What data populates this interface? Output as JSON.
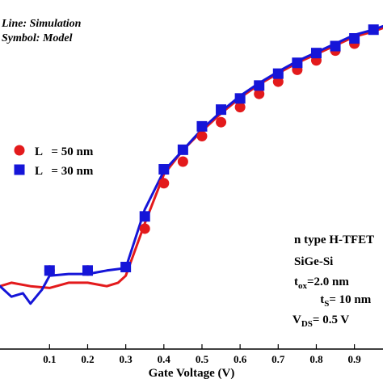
{
  "chart_data": {
    "type": "line",
    "title": "",
    "xlabel": "Gate Voltage (V)",
    "ylabel": "",
    "xlim": [
      -0.03,
      0.975
    ],
    "ylim": [
      0,
      1
    ],
    "x_ticks": [
      0.1,
      0.2,
      0.3,
      0.4,
      0.5,
      0.6,
      0.7,
      0.8,
      0.9
    ],
    "x_tick_labels": [
      "0.1",
      "0.2",
      "0.3",
      "0.4",
      "0.5",
      "0.6",
      "0.7",
      "0.8",
      "0.9"
    ],
    "grid": false,
    "notes": {
      "line_label": "Line: Simulation",
      "symbol_label": "Symbol: Model"
    },
    "legend": {
      "position": "center-left",
      "entries": [
        {
          "marker": "circle",
          "text": "L   = 50 nm",
          "color": "#e31a1c"
        },
        {
          "marker": "square",
          "text": "L   = 30 nm",
          "color": "#1515d8"
        }
      ]
    },
    "annotation": {
      "line1": "n type H-TFET",
      "line2": "SiGe-Si",
      "tox_base": "t",
      "tox_sub": "ox",
      "tox_value": "=2.0 nm",
      "ts_base": "t",
      "ts_sub": "S",
      "ts_value": "= 10 nm",
      "vds_base": "V",
      "vds_sub": "DS",
      "vds_value": "= 0.5 V"
    },
    "series": [
      {
        "name": "L = 50 nm",
        "kind": "simulation-line",
        "color": "#e31a1c",
        "x": [
          -0.03,
          0.0,
          0.05,
          0.1,
          0.15,
          0.2,
          0.25,
          0.28,
          0.3,
          0.32,
          0.35,
          0.4,
          0.45,
          0.5,
          0.55,
          0.6,
          0.65,
          0.7,
          0.75,
          0.8,
          0.85,
          0.9,
          0.95,
          0.975
        ],
        "y": [
          0.18,
          0.19,
          0.18,
          0.175,
          0.19,
          0.19,
          0.18,
          0.19,
          0.21,
          0.27,
          0.36,
          0.5,
          0.57,
          0.625,
          0.675,
          0.72,
          0.758,
          0.79,
          0.82,
          0.845,
          0.87,
          0.895,
          0.91,
          0.92
        ]
      },
      {
        "name": "L = 30 nm",
        "kind": "simulation-line",
        "color": "#1515d8",
        "x": [
          -0.03,
          0.0,
          0.03,
          0.05,
          0.08,
          0.1,
          0.15,
          0.2,
          0.25,
          0.3,
          0.35,
          0.4,
          0.45,
          0.5,
          0.55,
          0.6,
          0.65,
          0.7,
          0.75,
          0.8,
          0.85,
          0.9,
          0.95,
          0.975
        ],
        "y": [
          0.18,
          0.15,
          0.16,
          0.13,
          0.17,
          0.21,
          0.215,
          0.215,
          0.225,
          0.232,
          0.4,
          0.51,
          0.57,
          0.63,
          0.68,
          0.725,
          0.762,
          0.795,
          0.825,
          0.85,
          0.875,
          0.9,
          0.915,
          0.925
        ]
      },
      {
        "name": "L = 50 nm",
        "kind": "model-markers",
        "marker": "circle",
        "color": "#e31a1c",
        "x": [
          0.1,
          0.2,
          0.35,
          0.4,
          0.45,
          0.5,
          0.55,
          0.6,
          0.65,
          0.7,
          0.75,
          0.8,
          0.85,
          0.9
        ],
        "y": [
          0.225,
          0.225,
          0.345,
          0.475,
          0.537,
          0.61,
          0.65,
          0.693,
          0.731,
          0.766,
          0.8,
          0.827,
          0.855,
          0.875
        ]
      },
      {
        "name": "L = 30 nm",
        "kind": "model-markers",
        "marker": "square",
        "color": "#1515d8",
        "x": [
          0.1,
          0.2,
          0.3,
          0.35,
          0.4,
          0.45,
          0.5,
          0.55,
          0.6,
          0.65,
          0.7,
          0.75,
          0.8,
          0.85,
          0.9,
          0.95
        ],
        "y": [
          0.225,
          0.225,
          0.235,
          0.38,
          0.515,
          0.571,
          0.638,
          0.686,
          0.718,
          0.755,
          0.789,
          0.82,
          0.848,
          0.868,
          0.89,
          0.915
        ]
      }
    ]
  }
}
